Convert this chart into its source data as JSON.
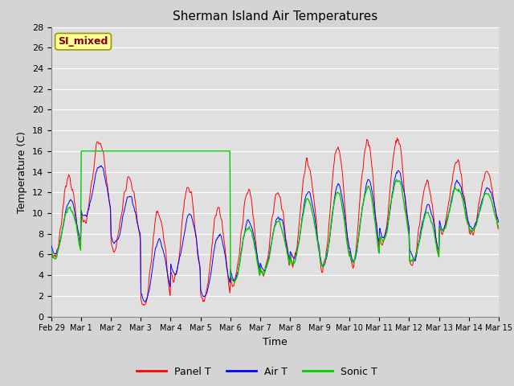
{
  "title": "Sherman Island Air Temperatures",
  "xlabel": "Time",
  "ylabel": "Temperature (C)",
  "ylim": [
    0,
    28
  ],
  "yticks": [
    0,
    2,
    4,
    6,
    8,
    10,
    12,
    14,
    16,
    18,
    20,
    22,
    24,
    26,
    28
  ],
  "xtick_labels": [
    "Feb 29",
    "Mar 1",
    "Mar 2",
    "Mar 3",
    "Mar 4",
    "Mar 5",
    "Mar 6",
    "Mar 7",
    "Mar 8",
    "Mar 9",
    "Mar 10",
    "Mar 11",
    "Mar 12",
    "Mar 13",
    "Mar 14",
    "Mar 15"
  ],
  "panel_T_color": "#ff0000",
  "air_T_color": "#0000ff",
  "sonic_T_color": "#00cc00",
  "annotation_text": "SI_mixed",
  "annotation_bg": "#ffff99",
  "annotation_fg": "#880000",
  "legend_labels": [
    "Panel T",
    "Air T",
    "Sonic T"
  ],
  "grid_color": "#ffffff",
  "title_fontsize": 11,
  "axis_fontsize": 9,
  "tick_fontsize": 8,
  "fig_bg": "#d4d4d4",
  "axes_bg": "#e0e0e0"
}
